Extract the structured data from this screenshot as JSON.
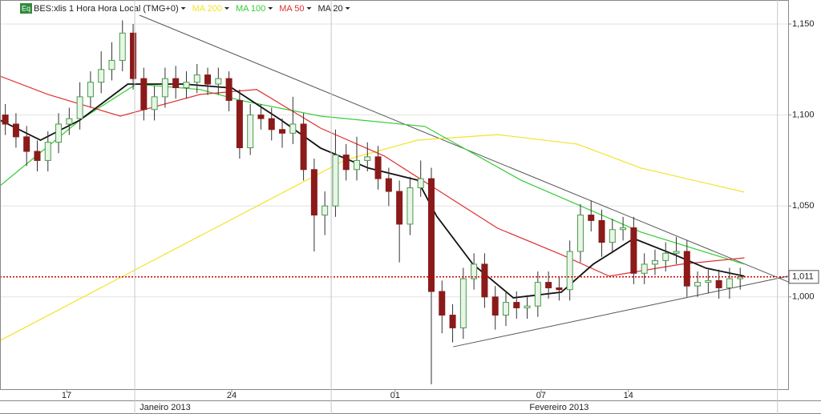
{
  "chart_data": {
    "type": "candlestick",
    "icon": "Eq",
    "title": "BES:xlis 1 Hora Hora Local (TMG+0)",
    "up_color": "#4c9a4c",
    "down_color": "#8b1a1a",
    "xlim": [
      -0.5,
      73.5
    ],
    "ylim": [
      0.9493,
      1.1632
    ],
    "yticks": [
      {
        "value": 1.0,
        "label": "1,000"
      },
      {
        "value": 1.05,
        "label": "1,050"
      },
      {
        "value": 1.1,
        "label": "1,100"
      },
      {
        "value": 1.15,
        "label": "1,150"
      }
    ],
    "grid": true,
    "xticks": [
      {
        "value": 5.75,
        "label": "17"
      },
      {
        "value": 21.26,
        "label": "24"
      },
      {
        "value": 36.6,
        "label": "01"
      },
      {
        "value": 50.3,
        "label": "07"
      },
      {
        "value": 58.5,
        "label": "14"
      }
    ],
    "separators": [
      12.15,
      30.6,
      72.5
    ],
    "months": [
      {
        "value": 15,
        "label": "Janeiro 2013"
      },
      {
        "value": 52,
        "label": "Fevereiro 2013"
      }
    ],
    "last_price": {
      "value": 1.011,
      "label": "1,011",
      "color": "#cc0000"
    },
    "candles": {
      "open": [
        1.1,
        1.095,
        1.088,
        1.08,
        1.075,
        1.085,
        1.095,
        1.098,
        1.11,
        1.118,
        1.125,
        1.13,
        1.145,
        1.12,
        1.103,
        1.11,
        1.12,
        1.115,
        1.118,
        1.122,
        1.117,
        1.12,
        1.108,
        1.082,
        1.1,
        1.098,
        1.092,
        1.09,
        1.095,
        1.07,
        1.045,
        1.05,
        1.078,
        1.07,
        1.075,
        1.077,
        1.065,
        1.058,
        1.04,
        1.06,
        1.065,
        1.003,
        0.99,
        0.983,
        1.01,
        1.018,
        1.0,
        0.99,
        0.997,
        0.994,
        0.995,
        1.008,
        1.005,
        1.004,
        1.025,
        1.045,
        1.042,
        1.03,
        1.037,
        1.038,
        1.013,
        1.018,
        1.02,
        1.024,
        1.025,
        1.006,
        1.008,
        1.009,
        1.005,
        1.01
      ],
      "high": [
        1.106,
        1.101,
        1.094,
        1.086,
        1.091,
        1.101,
        1.104,
        1.118,
        1.124,
        1.135,
        1.14,
        1.152,
        1.15,
        1.126,
        1.116,
        1.126,
        1.127,
        1.124,
        1.128,
        1.126,
        1.126,
        1.124,
        1.114,
        1.106,
        1.106,
        1.104,
        1.098,
        1.11,
        1.101,
        1.076,
        1.058,
        1.092,
        1.084,
        1.088,
        1.085,
        1.083,
        1.071,
        1.064,
        1.066,
        1.075,
        1.071,
        1.009,
        0.996,
        1.016,
        1.024,
        1.024,
        1.006,
        1.003,
        1.003,
        1.001,
        1.014,
        1.014,
        1.011,
        1.031,
        1.051,
        1.053,
        1.048,
        1.043,
        1.044,
        1.044,
        1.024,
        1.026,
        1.03,
        1.033,
        1.031,
        1.014,
        1.015,
        1.015,
        1.016,
        1.016
      ],
      "low": [
        1.089,
        1.082,
        1.072,
        1.069,
        1.069,
        1.079,
        1.089,
        1.092,
        1.104,
        1.112,
        1.119,
        1.124,
        1.114,
        1.097,
        1.097,
        1.104,
        1.109,
        1.109,
        1.112,
        1.111,
        1.111,
        1.102,
        1.076,
        1.078,
        1.092,
        1.086,
        1.082,
        1.084,
        1.064,
        1.025,
        1.034,
        1.044,
        1.064,
        1.064,
        1.069,
        1.059,
        1.05,
        1.019,
        1.034,
        1.055,
        0.952,
        0.98,
        0.975,
        0.977,
        1.004,
        0.994,
        0.982,
        0.984,
        0.988,
        0.988,
        0.989,
        0.999,
        0.998,
        0.998,
        1.019,
        1.036,
        1.022,
        1.024,
        1.031,
        1.007,
        1.007,
        1.012,
        1.014,
        1.018,
        1.0,
        1.0,
        1.002,
        0.999,
        0.999,
        1.004
      ],
      "close": [
        1.095,
        1.088,
        1.08,
        1.075,
        1.085,
        1.095,
        1.098,
        1.11,
        1.118,
        1.125,
        1.13,
        1.145,
        1.12,
        1.103,
        1.11,
        1.12,
        1.115,
        1.118,
        1.122,
        1.117,
        1.12,
        1.108,
        1.082,
        1.1,
        1.098,
        1.092,
        1.09,
        1.095,
        1.07,
        1.045,
        1.05,
        1.078,
        1.07,
        1.075,
        1.077,
        1.065,
        1.058,
        1.04,
        1.06,
        1.065,
        1.003,
        0.99,
        0.983,
        1.01,
        1.018,
        1.0,
        0.99,
        0.997,
        0.994,
        0.995,
        1.008,
        1.005,
        1.004,
        1.025,
        1.045,
        1.042,
        1.03,
        1.037,
        1.038,
        1.013,
        1.018,
        1.02,
        1.024,
        1.025,
        1.006,
        1.008,
        1.009,
        1.005,
        1.01,
        1.011
      ]
    },
    "series": [
      {
        "name": "MA 200",
        "color": "#f2e32a",
        "x": [
          -0.5,
          11.9,
          31.9,
          38.7,
          46.2,
          53.7,
          59.7,
          69.4
        ],
        "values": [
          0.976,
          1.014,
          1.0752,
          1.0862,
          1.0892,
          1.084,
          1.0708,
          1.0576
        ]
      },
      {
        "name": "MA 100",
        "color": "#33cc33",
        "x": [
          -0.5,
          7.0,
          12.3,
          18.3,
          22.1,
          29.6,
          39.4,
          48.4,
          59.7,
          69.4
        ],
        "values": [
          1.0611,
          1.0972,
          1.117,
          1.114,
          1.108,
          1.0994,
          1.0937,
          1.0642,
          1.0356,
          1.018
        ]
      },
      {
        "name": "MA 50",
        "color": "#e03030",
        "x": [
          -0.5,
          4.0,
          10.8,
          18.3,
          23.6,
          29.6,
          35.6,
          40.9,
          46.2,
          52.2,
          56.7,
          63.5,
          69.4
        ],
        "values": [
          1.1214,
          1.1113,
          1.0994,
          1.1113,
          1.114,
          1.0928,
          1.0774,
          1.0576,
          1.0378,
          1.0233,
          1.0114,
          1.018,
          1.0215
        ]
      },
      {
        "name": "MA 20",
        "color": "#111111",
        "x": [
          -0.5,
          3.3,
          7.0,
          11.5,
          16.8,
          21.3,
          25.9,
          29.6,
          34.1,
          38.7,
          40.5,
          43.9,
          47.7,
          52.2,
          55.2,
          59.0,
          62.8,
          65.8,
          69.4
        ],
        "values": [
          1.0972,
          1.0862,
          1.0972,
          1.117,
          1.117,
          1.1148,
          1.0972,
          1.0818,
          1.0708,
          1.0642,
          1.0444,
          1.018,
          0.9995,
          1.0026,
          1.018,
          1.0321,
          1.0233,
          1.0158,
          1.0114
        ]
      }
    ],
    "trendlines": [
      {
        "x": [
          10.04,
          73.5
        ],
        "y": [
          1.161,
          1.0083
        ]
      },
      {
        "x": [
          42.05,
          73.5
        ],
        "y": [
          0.9726,
          1.0114
        ]
      }
    ]
  }
}
